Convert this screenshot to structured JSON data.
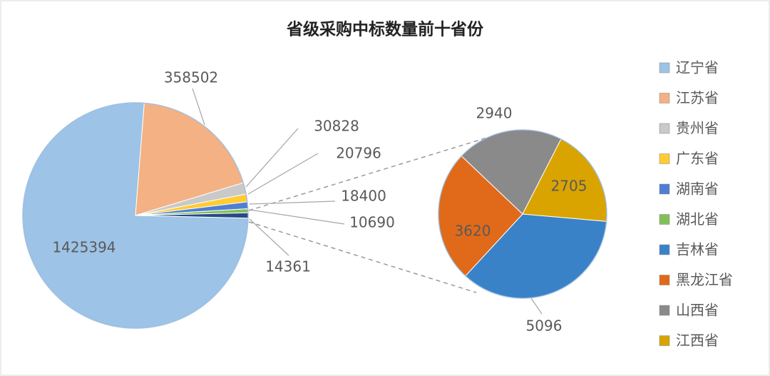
{
  "chart_data": {
    "type": "pie-of-pie",
    "title": "省级采购中标数量前十省份",
    "main": {
      "categories": [
        "辽宁省",
        "江苏省",
        "贵州省",
        "广东省",
        "湖南省",
        "湖北省",
        null
      ],
      "values": [
        1425394,
        358502,
        30828,
        20796,
        18400,
        10690,
        14361
      ],
      "colors": [
        "#9dc3e6",
        "#f4b183",
        "#c9c9c9",
        "#ffcc33",
        "#4f7fd3",
        "#82c15a",
        "#2a4a82"
      ]
    },
    "secondary": {
      "categories": [
        "吉林省",
        "黑龙江省",
        "山西省",
        "江西省"
      ],
      "values": [
        5096,
        3620,
        2940,
        2705
      ],
      "colors": [
        "#3a82c8",
        "#e06a1a",
        "#8a8a8a",
        "#d9a400"
      ]
    },
    "legend": "right"
  }
}
